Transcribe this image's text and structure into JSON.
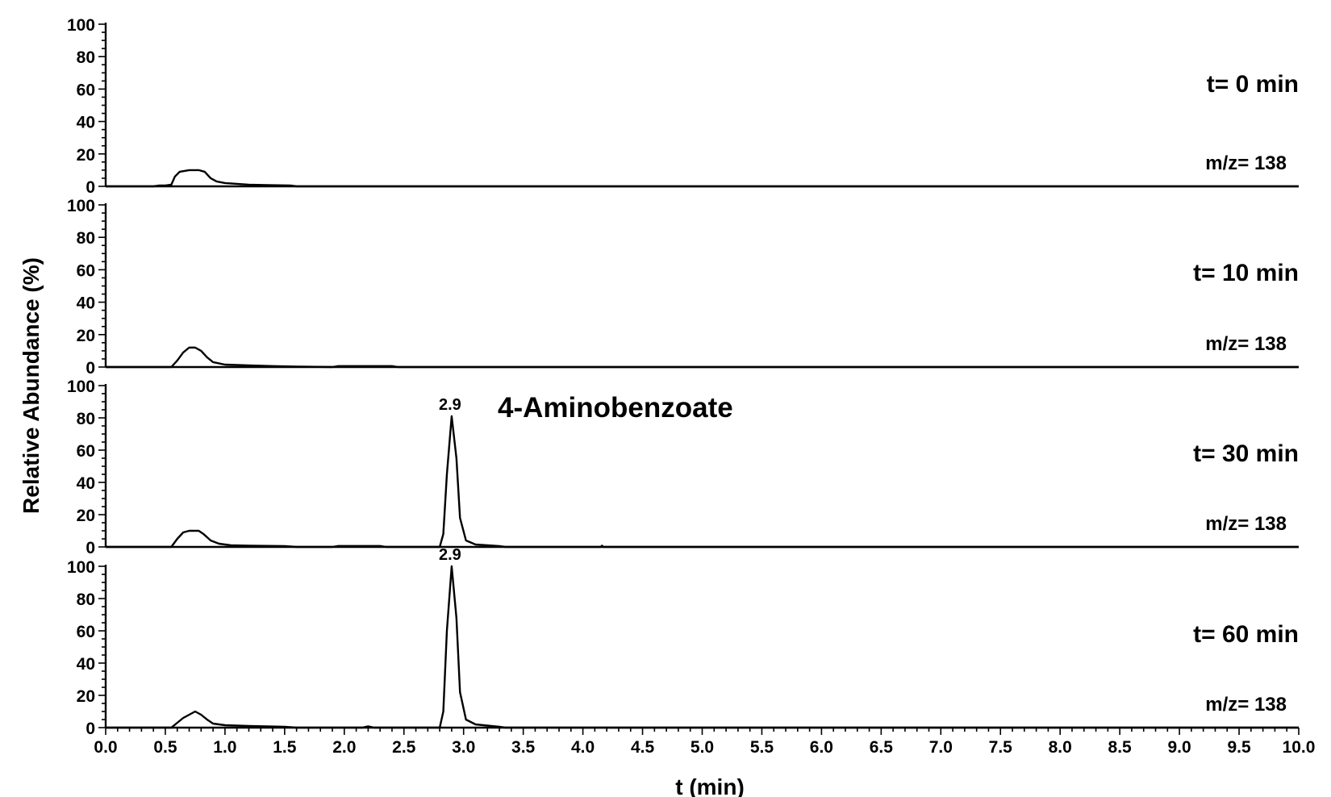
{
  "chart_data": {
    "type": "line",
    "xlabel": "t (min)",
    "ylabel": "Relative Abundance (%)",
    "xlim": [
      0,
      10
    ],
    "ylim": [
      0,
      100
    ],
    "x_ticks": [
      0.0,
      0.5,
      1.0,
      1.5,
      2.0,
      2.5,
      3.0,
      3.5,
      4.0,
      4.5,
      5.0,
      5.5,
      6.0,
      6.5,
      7.0,
      7.5,
      8.0,
      8.5,
      9.0,
      9.5,
      10.0
    ],
    "x_tick_labels": [
      "0.0",
      "0.5",
      "1.0",
      "1.5",
      "2.0",
      "2.5",
      "3.0",
      "3.5",
      "4.0",
      "4.5",
      "5.0",
      "5.5",
      "6.0",
      "6.5",
      "7.0",
      "7.5",
      "8.0",
      "8.5",
      "9.0",
      "9.5",
      "10.0"
    ],
    "y_ticks": [
      0,
      20,
      40,
      60,
      80,
      100
    ],
    "y_tick_labels": [
      "0",
      "20",
      "40",
      "60",
      "80",
      "100"
    ],
    "annotation": "4-Aminobenzoate",
    "panels": [
      {
        "label": "t= 0 min",
        "mz": "m/z= 138",
        "peak_label": "",
        "trace": [
          [
            0.0,
            0
          ],
          [
            0.4,
            0
          ],
          [
            0.45,
            0.5
          ],
          [
            0.5,
            0.5
          ],
          [
            0.55,
            1
          ],
          [
            0.58,
            6
          ],
          [
            0.62,
            9
          ],
          [
            0.7,
            10
          ],
          [
            0.78,
            10
          ],
          [
            0.83,
            9
          ],
          [
            0.88,
            5
          ],
          [
            0.93,
            3
          ],
          [
            1.0,
            2
          ],
          [
            1.1,
            1.5
          ],
          [
            1.2,
            1
          ],
          [
            1.35,
            0.8
          ],
          [
            1.55,
            0.5
          ],
          [
            1.6,
            0
          ],
          [
            10.0,
            0
          ]
        ]
      },
      {
        "label": "t= 10 min",
        "mz": "m/z= 138",
        "peak_label": "",
        "trace": [
          [
            0.0,
            0
          ],
          [
            0.55,
            0
          ],
          [
            0.6,
            4
          ],
          [
            0.65,
            9
          ],
          [
            0.7,
            12
          ],
          [
            0.75,
            12
          ],
          [
            0.8,
            10
          ],
          [
            0.85,
            6
          ],
          [
            0.9,
            3
          ],
          [
            1.0,
            1.5
          ],
          [
            1.2,
            1
          ],
          [
            1.4,
            0.6
          ],
          [
            1.6,
            0.3
          ],
          [
            1.9,
            0
          ],
          [
            1.95,
            0.6
          ],
          [
            2.4,
            0.6
          ],
          [
            2.45,
            0
          ],
          [
            10.0,
            0
          ]
        ]
      },
      {
        "label": "t= 30 min",
        "mz": "m/z= 138",
        "peak_label": "2.9",
        "trace": [
          [
            0.0,
            0
          ],
          [
            0.55,
            0
          ],
          [
            0.6,
            5
          ],
          [
            0.65,
            9
          ],
          [
            0.7,
            10
          ],
          [
            0.78,
            10
          ],
          [
            0.82,
            8
          ],
          [
            0.88,
            4
          ],
          [
            0.95,
            2
          ],
          [
            1.05,
            1
          ],
          [
            1.2,
            0.8
          ],
          [
            1.5,
            0.5
          ],
          [
            1.6,
            0
          ],
          [
            1.9,
            0
          ],
          [
            1.95,
            0.6
          ],
          [
            2.3,
            0.6
          ],
          [
            2.35,
            0
          ],
          [
            2.8,
            0
          ],
          [
            2.83,
            8
          ],
          [
            2.86,
            45
          ],
          [
            2.9,
            81
          ],
          [
            2.94,
            55
          ],
          [
            2.97,
            18
          ],
          [
            3.02,
            4
          ],
          [
            3.1,
            1.5
          ],
          [
            3.3,
            0.5
          ],
          [
            3.35,
            0
          ],
          [
            4.15,
            0
          ],
          [
            4.16,
            0.8
          ],
          [
            4.17,
            0
          ],
          [
            10.0,
            0
          ]
        ]
      },
      {
        "label": "t= 60 min",
        "mz": "m/z= 138",
        "peak_label": "2.9",
        "trace": [
          [
            0.0,
            0
          ],
          [
            0.55,
            0
          ],
          [
            0.6,
            3
          ],
          [
            0.65,
            6
          ],
          [
            0.7,
            8
          ],
          [
            0.75,
            10
          ],
          [
            0.8,
            8
          ],
          [
            0.85,
            5
          ],
          [
            0.9,
            2.5
          ],
          [
            1.0,
            1.5
          ],
          [
            1.2,
            1
          ],
          [
            1.5,
            0.5
          ],
          [
            1.6,
            0
          ],
          [
            2.15,
            0
          ],
          [
            2.2,
            0.8
          ],
          [
            2.25,
            0
          ],
          [
            2.8,
            0
          ],
          [
            2.83,
            10
          ],
          [
            2.86,
            60
          ],
          [
            2.9,
            100
          ],
          [
            2.94,
            68
          ],
          [
            2.97,
            22
          ],
          [
            3.02,
            5
          ],
          [
            3.1,
            2
          ],
          [
            3.3,
            0.5
          ],
          [
            3.35,
            0
          ],
          [
            10.0,
            0
          ]
        ]
      }
    ]
  }
}
